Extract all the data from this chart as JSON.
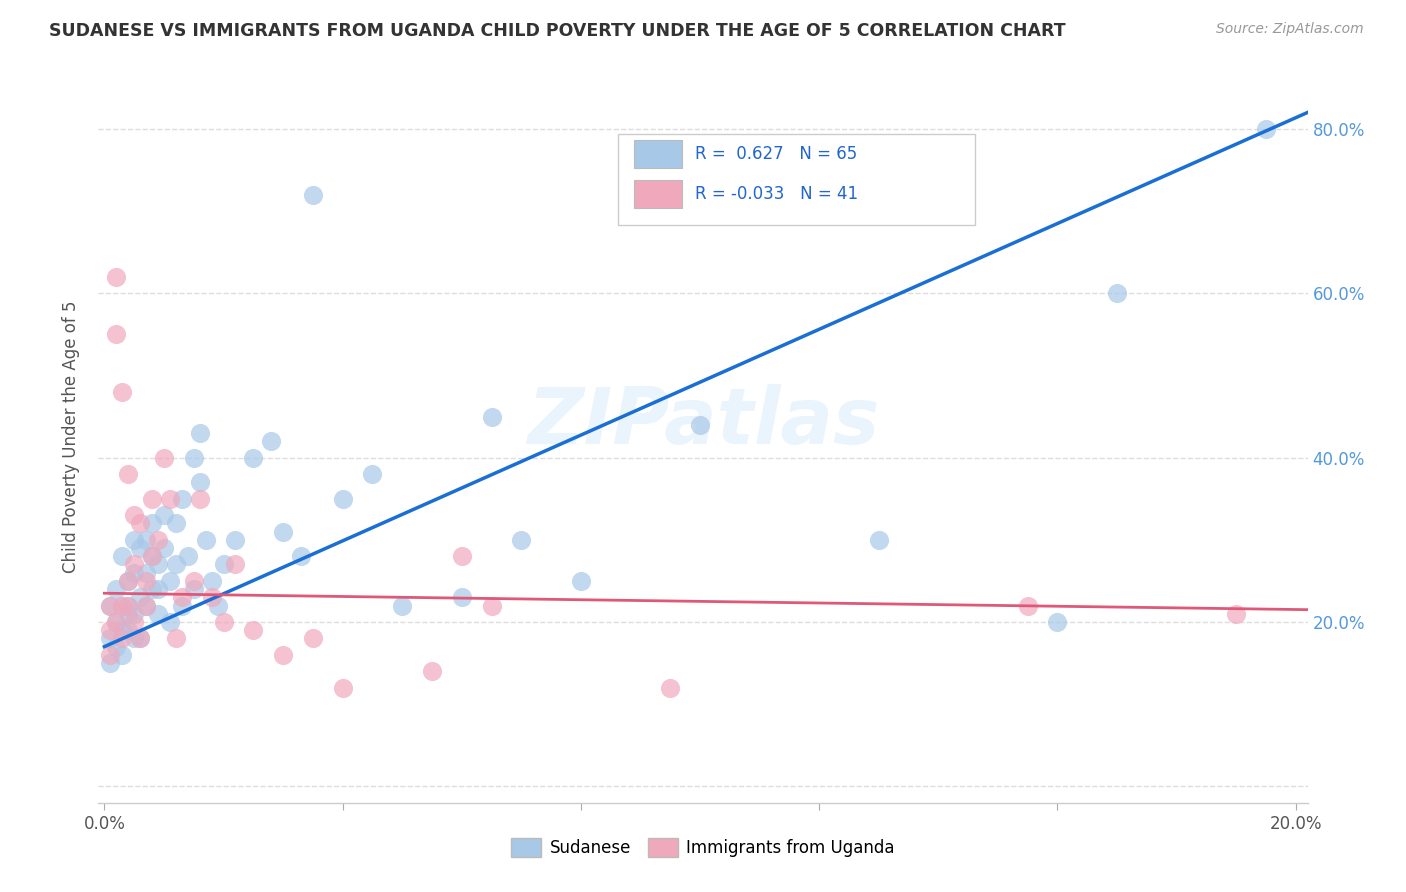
{
  "title": "SUDANESE VS IMMIGRANTS FROM UGANDA CHILD POVERTY UNDER THE AGE OF 5 CORRELATION CHART",
  "source": "Source: ZipAtlas.com",
  "ylabel": "Child Poverty Under the Age of 5",
  "xlim": [
    -0.001,
    0.202
  ],
  "ylim": [
    -0.02,
    0.87
  ],
  "yticks": [
    0.0,
    0.2,
    0.4,
    0.6,
    0.8
  ],
  "ytick_labels_left": [
    "",
    "",
    "",
    "",
    ""
  ],
  "ytick_labels_right": [
    "",
    "20.0%",
    "40.0%",
    "60.0%",
    "80.0%"
  ],
  "xticks": [
    0.0,
    0.04,
    0.08,
    0.12,
    0.16,
    0.2
  ],
  "xtick_labels": [
    "0.0%",
    "",
    "",
    "",
    "",
    "20.0%"
  ],
  "blue_R": 0.627,
  "blue_N": 65,
  "pink_R": -0.033,
  "pink_N": 41,
  "blue_color": "#a8c8e8",
  "pink_color": "#f0a8bc",
  "blue_line_color": "#1a6fd4",
  "pink_line_color": "#e05878",
  "right_tick_color": "#5599dd",
  "watermark": "ZIPatlas",
  "legend_label_blue": "Sudanese",
  "legend_label_pink": "Immigrants from Uganda",
  "blue_line_x0": 0.0,
  "blue_line_y0": 0.17,
  "blue_line_x1": 0.202,
  "blue_line_y1": 0.82,
  "pink_line_x0": 0.0,
  "pink_line_y0": 0.235,
  "pink_line_x1": 0.202,
  "pink_line_y1": 0.215,
  "blue_scatter_x": [
    0.001,
    0.001,
    0.001,
    0.002,
    0.002,
    0.002,
    0.003,
    0.003,
    0.003,
    0.003,
    0.004,
    0.004,
    0.004,
    0.004,
    0.005,
    0.005,
    0.005,
    0.005,
    0.006,
    0.006,
    0.006,
    0.007,
    0.007,
    0.007,
    0.008,
    0.008,
    0.008,
    0.009,
    0.009,
    0.009,
    0.01,
    0.01,
    0.011,
    0.011,
    0.012,
    0.012,
    0.013,
    0.013,
    0.014,
    0.015,
    0.015,
    0.016,
    0.016,
    0.017,
    0.018,
    0.019,
    0.02,
    0.022,
    0.025,
    0.028,
    0.03,
    0.033,
    0.035,
    0.04,
    0.045,
    0.05,
    0.06,
    0.065,
    0.07,
    0.08,
    0.1,
    0.13,
    0.16,
    0.17,
    0.195
  ],
  "blue_scatter_y": [
    0.22,
    0.18,
    0.15,
    0.2,
    0.17,
    0.24,
    0.22,
    0.19,
    0.16,
    0.28,
    0.22,
    0.19,
    0.25,
    0.21,
    0.21,
    0.18,
    0.3,
    0.26,
    0.23,
    0.18,
    0.29,
    0.26,
    0.22,
    0.3,
    0.28,
    0.24,
    0.32,
    0.27,
    0.24,
    0.21,
    0.33,
    0.29,
    0.25,
    0.2,
    0.32,
    0.27,
    0.35,
    0.22,
    0.28,
    0.4,
    0.24,
    0.43,
    0.37,
    0.3,
    0.25,
    0.22,
    0.27,
    0.3,
    0.4,
    0.42,
    0.31,
    0.28,
    0.72,
    0.35,
    0.38,
    0.22,
    0.23,
    0.45,
    0.3,
    0.25,
    0.44,
    0.3,
    0.2,
    0.6,
    0.8
  ],
  "pink_scatter_x": [
    0.001,
    0.001,
    0.001,
    0.002,
    0.002,
    0.002,
    0.003,
    0.003,
    0.003,
    0.004,
    0.004,
    0.004,
    0.005,
    0.005,
    0.005,
    0.006,
    0.006,
    0.007,
    0.007,
    0.008,
    0.008,
    0.009,
    0.01,
    0.011,
    0.012,
    0.013,
    0.015,
    0.016,
    0.018,
    0.02,
    0.022,
    0.025,
    0.03,
    0.035,
    0.04,
    0.055,
    0.06,
    0.065,
    0.095,
    0.155,
    0.19
  ],
  "pink_scatter_y": [
    0.22,
    0.19,
    0.16,
    0.62,
    0.55,
    0.2,
    0.48,
    0.22,
    0.18,
    0.25,
    0.38,
    0.22,
    0.33,
    0.27,
    0.2,
    0.32,
    0.18,
    0.25,
    0.22,
    0.35,
    0.28,
    0.3,
    0.4,
    0.35,
    0.18,
    0.23,
    0.25,
    0.35,
    0.23,
    0.2,
    0.27,
    0.19,
    0.16,
    0.18,
    0.12,
    0.14,
    0.28,
    0.22,
    0.12,
    0.22,
    0.21
  ]
}
